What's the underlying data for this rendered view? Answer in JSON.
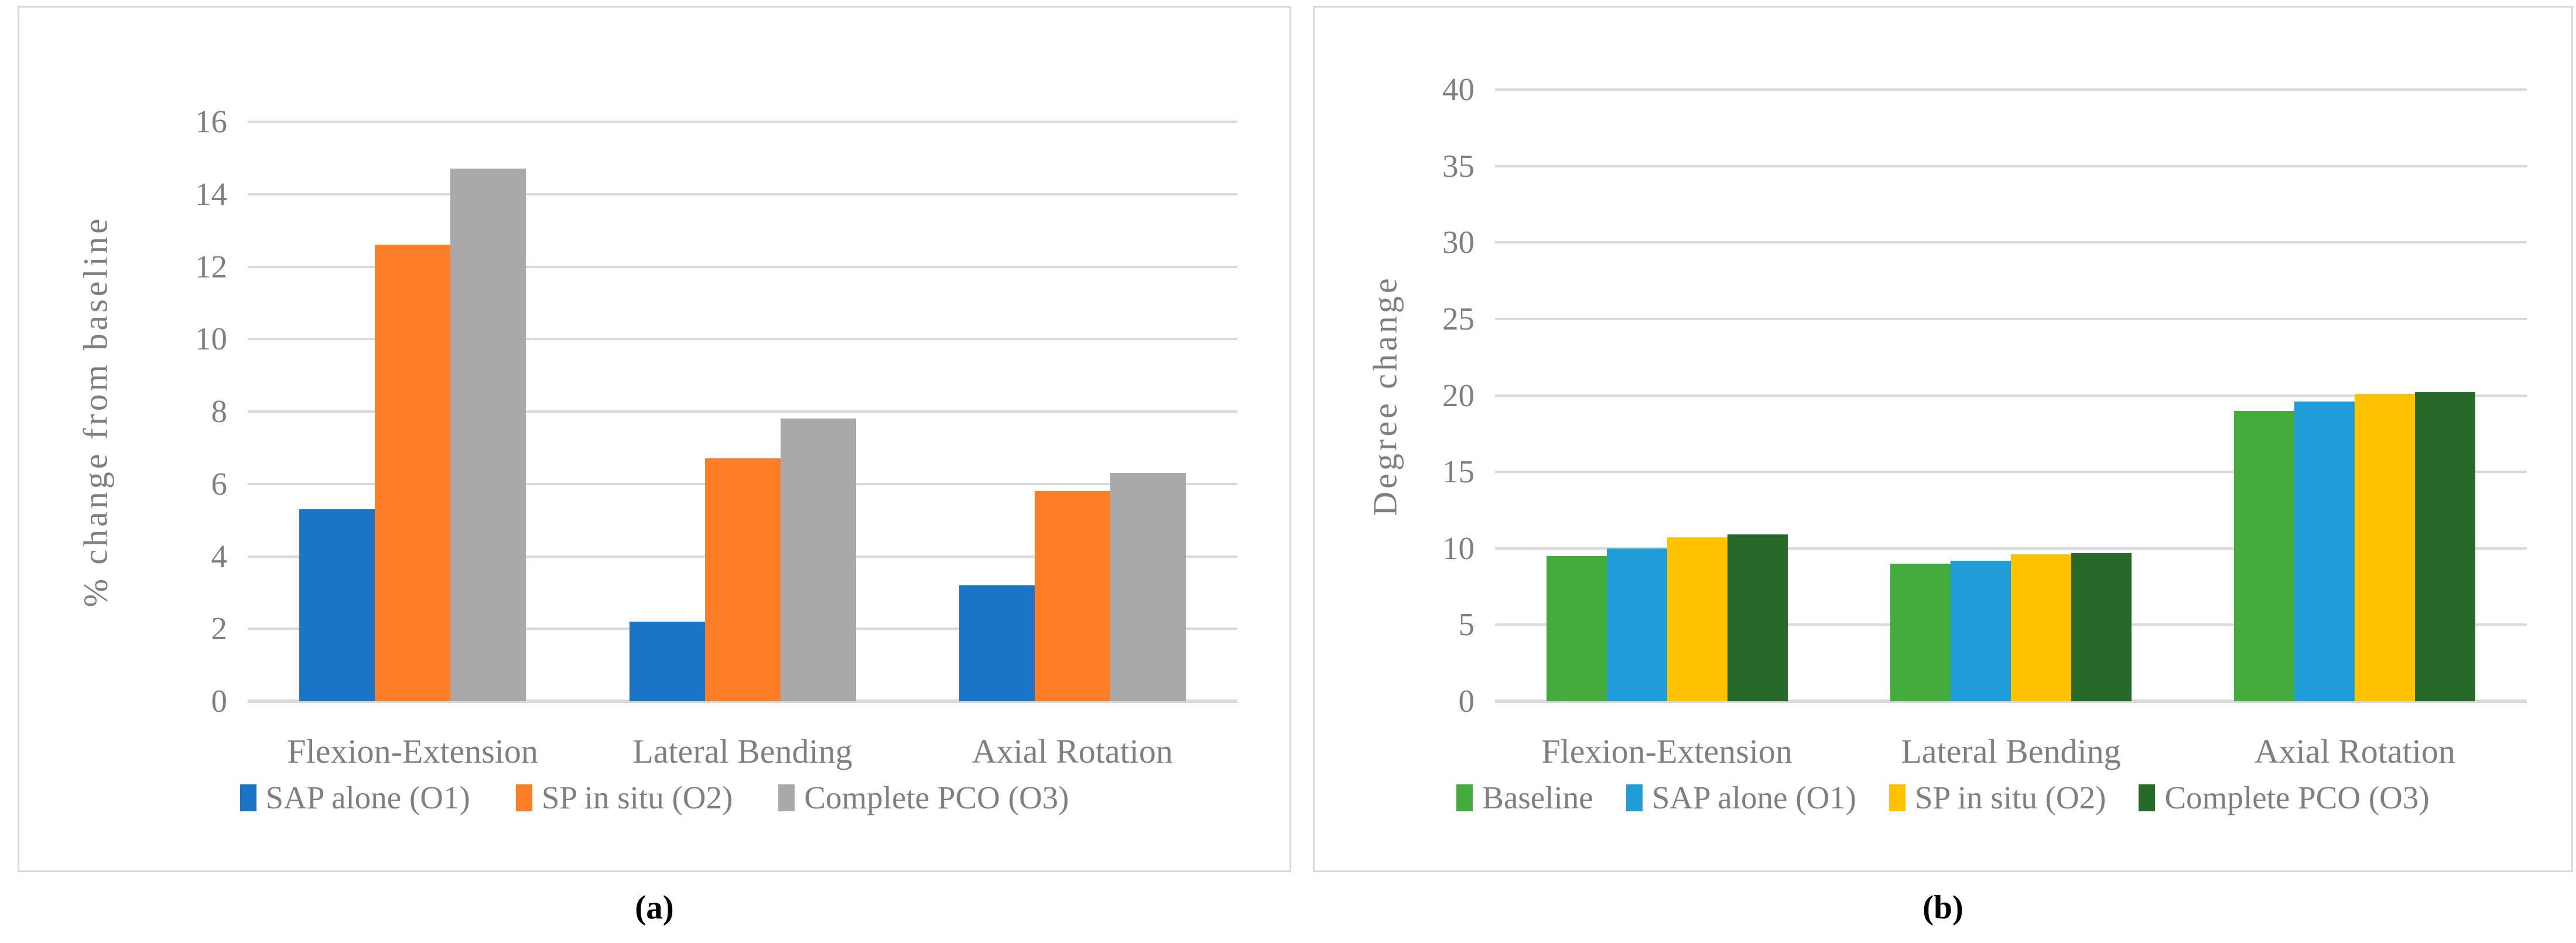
{
  "chart_data": [
    {
      "type": "bar",
      "panel": "a",
      "caption": "(a)",
      "ylabel": "% change from baseline",
      "xlabel": "",
      "ylim": [
        0,
        16
      ],
      "yticks": [
        0,
        2,
        4,
        6,
        8,
        10,
        12,
        14,
        16
      ],
      "grid": true,
      "legend_position": "bottom",
      "categories": [
        "Flexion-Extension",
        "Lateral Bending",
        "Axial Rotation"
      ],
      "series": [
        {
          "name": "SAP alone (O1)",
          "color": "#1B74C6",
          "values": [
            5.3,
            2.2,
            3.2
          ]
        },
        {
          "name": "SP in situ (O2)",
          "color": "#FD7E26",
          "values": [
            12.6,
            6.7,
            5.8
          ]
        },
        {
          "name": "Complete PCO (O3)",
          "color": "#A9A9A9",
          "values": [
            14.7,
            7.8,
            6.3
          ]
        }
      ]
    },
    {
      "type": "bar",
      "panel": "b",
      "caption": "(b)",
      "ylabel": "Degree change",
      "xlabel": "",
      "ylim": [
        0,
        40
      ],
      "yticks": [
        0,
        5,
        10,
        15,
        20,
        25,
        30,
        35,
        40
      ],
      "grid": true,
      "legend_position": "bottom",
      "categories": [
        "Flexion-Extension",
        "Lateral Bending",
        "Axial Rotation"
      ],
      "series": [
        {
          "name": "Baseline",
          "color": "#44AC3C",
          "values": [
            9.5,
            9.0,
            19.0
          ]
        },
        {
          "name": "SAP alone (O1)",
          "color": "#209CD8",
          "values": [
            10.0,
            9.2,
            19.6
          ]
        },
        {
          "name": "SP in situ (O2)",
          "color": "#FFC100",
          "values": [
            10.7,
            9.6,
            20.1
          ]
        },
        {
          "name": "Complete PCO (O3)",
          "color": "#276928",
          "values": [
            10.9,
            9.7,
            20.2
          ]
        }
      ]
    }
  ],
  "colors": {
    "gridline": "#D9D9D9",
    "axis_text": "#7F7F7F",
    "panel_border": "#D9D9D9",
    "background": "#FFFFFF"
  }
}
